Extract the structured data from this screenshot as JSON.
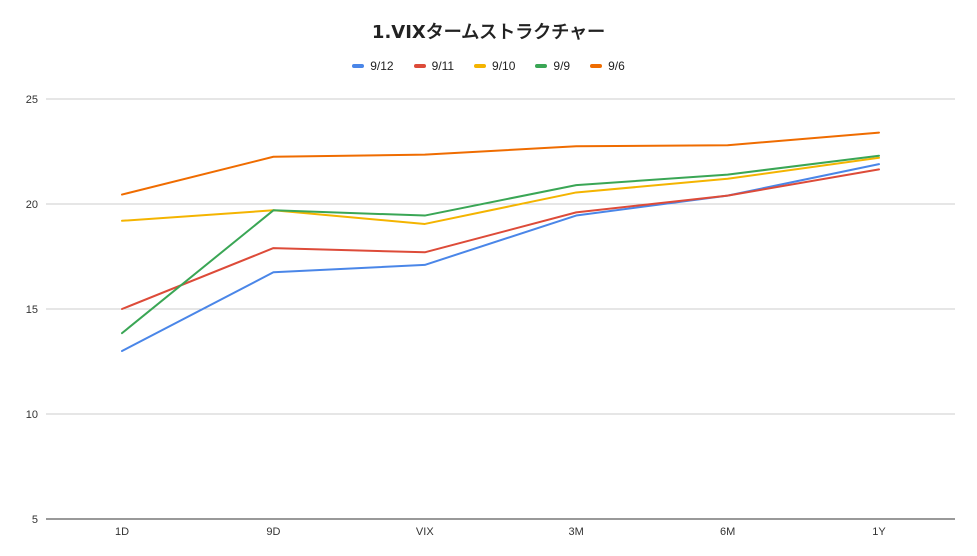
{
  "chart_data": {
    "type": "line",
    "title": "1.VIXタームストラクチャー",
    "categories": [
      "1D",
      "9D",
      "VIX",
      "3M",
      "6M",
      "1Y"
    ],
    "ylim": [
      5,
      25
    ],
    "yticks": [
      "5",
      "10",
      "15",
      "20",
      "25"
    ],
    "grid": true,
    "legend_position": "top",
    "series": [
      {
        "name": "9/12",
        "color": "#4a86e8",
        "values": [
          13.0,
          16.75,
          17.1,
          19.45,
          20.4,
          21.9
        ]
      },
      {
        "name": "9/11",
        "color": "#dd4b39",
        "values": [
          15.0,
          17.9,
          17.7,
          19.6,
          20.4,
          21.65
        ]
      },
      {
        "name": "9/10",
        "color": "#f4b400",
        "values": [
          19.2,
          19.7,
          19.05,
          20.55,
          21.2,
          22.2
        ]
      },
      {
        "name": "9/9",
        "color": "#3aa655",
        "values": [
          13.85,
          19.7,
          19.45,
          20.9,
          21.4,
          22.3
        ]
      },
      {
        "name": "9/6",
        "color": "#ef6c00",
        "values": [
          20.45,
          22.25,
          22.35,
          22.75,
          22.8,
          23.4
        ]
      }
    ]
  }
}
